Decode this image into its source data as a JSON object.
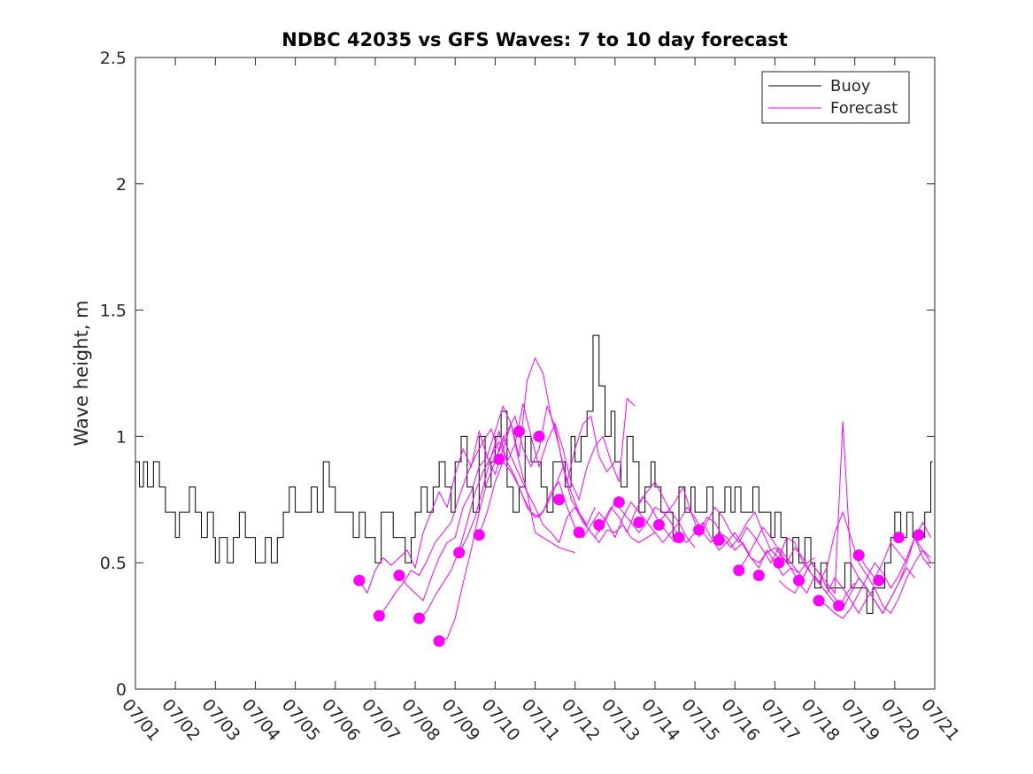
{
  "chart_data": {
    "type": "line",
    "title": "NDBC 42035 vs GFS Waves: 7 to 10 day forecast",
    "xlabel": "",
    "ylabel": "Wave height, m",
    "xlim": [
      0,
      20
    ],
    "ylim": [
      0,
      2.5
    ],
    "x_unit": "days since 07/01",
    "x_tick_labels": [
      "07/01",
      "07/02",
      "07/03",
      "07/04",
      "07/05",
      "07/06",
      "07/07",
      "07/08",
      "07/09",
      "07/10",
      "07/11",
      "07/12",
      "07/13",
      "07/14",
      "07/15",
      "07/16",
      "07/17",
      "07/18",
      "07/19",
      "07/20",
      "07/21"
    ],
    "y_ticks": [
      0,
      0.5,
      1,
      1.5,
      2,
      2.5
    ],
    "y_tick_labels": [
      "0",
      "0.5",
      "1",
      "1.5",
      "2",
      "2.5"
    ],
    "legend": {
      "placement": "top-right",
      "entries": [
        "Buoy",
        "Forecast"
      ]
    },
    "colors": {
      "buoy": "#000000",
      "forecast": "#ff00ff"
    },
    "series": [
      {
        "name": "Buoy",
        "x": [
          0,
          0.1,
          0.2,
          0.3,
          0.45,
          0.6,
          0.75,
          0.9,
          1.0,
          1.1,
          1.2,
          1.35,
          1.5,
          1.65,
          1.8,
          1.95,
          2.0,
          2.1,
          2.2,
          2.3,
          2.45,
          2.6,
          2.75,
          2.9,
          3.0,
          3.1,
          3.25,
          3.4,
          3.55,
          3.7,
          3.85,
          4.0,
          4.1,
          4.25,
          4.4,
          4.55,
          4.7,
          4.85,
          5.0,
          5.15,
          5.3,
          5.45,
          5.6,
          5.75,
          5.9,
          6.0,
          6.15,
          6.3,
          6.45,
          6.6,
          6.75,
          6.9,
          7.0,
          7.15,
          7.3,
          7.45,
          7.6,
          7.75,
          7.9,
          8.0,
          8.15,
          8.3,
          8.45,
          8.6,
          8.75,
          8.9,
          9.0,
          9.15,
          9.3,
          9.45,
          9.6,
          9.75,
          9.9,
          10.0,
          10.15,
          10.3,
          10.45,
          10.6,
          10.75,
          10.9,
          11.0,
          11.15,
          11.3,
          11.45,
          11.6,
          11.75,
          11.9,
          12.0,
          12.15,
          12.3,
          12.45,
          12.6,
          12.75,
          12.9,
          13.0,
          13.15,
          13.3,
          13.45,
          13.6,
          13.75,
          13.9,
          14.0,
          14.15,
          14.3,
          14.45,
          14.6,
          14.75,
          14.9,
          15.0,
          15.15,
          15.3,
          15.45,
          15.6,
          15.75,
          15.9,
          16.0,
          16.15,
          16.3,
          16.45,
          16.6,
          16.75,
          16.9,
          17.0,
          17.15,
          17.3,
          17.45,
          17.6,
          17.75,
          17.9,
          18.0,
          18.15,
          18.3,
          18.45,
          18.6,
          18.75,
          18.9,
          19.0,
          19.15,
          19.3,
          19.45,
          19.6,
          19.75,
          19.9
        ],
        "values": [
          0.9,
          0.8,
          0.9,
          0.8,
          0.9,
          0.8,
          0.7,
          0.7,
          0.6,
          0.7,
          0.7,
          0.8,
          0.7,
          0.6,
          0.7,
          0.6,
          0.5,
          0.6,
          0.6,
          0.5,
          0.6,
          0.7,
          0.6,
          0.6,
          0.5,
          0.5,
          0.6,
          0.5,
          0.6,
          0.7,
          0.8,
          0.7,
          0.7,
          0.7,
          0.8,
          0.7,
          0.9,
          0.8,
          0.7,
          0.7,
          0.7,
          0.6,
          0.7,
          0.6,
          0.6,
          0.5,
          0.7,
          0.7,
          0.6,
          0.6,
          0.5,
          0.6,
          0.7,
          0.8,
          0.7,
          0.8,
          0.9,
          0.8,
          0.7,
          0.9,
          1.0,
          0.8,
          0.7,
          1.0,
          0.8,
          0.9,
          1.0,
          1.1,
          0.8,
          0.7,
          0.8,
          1.0,
          0.9,
          0.9,
          0.8,
          0.7,
          0.9,
          0.9,
          0.8,
          1.0,
          0.9,
          1.0,
          1.1,
          1.4,
          1.2,
          1.0,
          1.1,
          0.9,
          0.8,
          1.0,
          0.9,
          0.7,
          0.8,
          0.9,
          0.8,
          0.7,
          0.7,
          0.6,
          0.8,
          0.7,
          0.8,
          0.7,
          0.7,
          0.8,
          0.6,
          0.7,
          0.8,
          0.7,
          0.8,
          0.7,
          0.7,
          0.8,
          0.7,
          0.7,
          0.6,
          0.7,
          0.6,
          0.5,
          0.6,
          0.5,
          0.6,
          0.5,
          0.4,
          0.5,
          0.4,
          0.4,
          0.4,
          0.5,
          0.4,
          0.4,
          0.4,
          0.3,
          0.4,
          0.4,
          0.5,
          0.6,
          0.7,
          0.6,
          0.7,
          0.6,
          0.6,
          0.7,
          0.9
        ]
      },
      {
        "name": "Forecast",
        "x": [
          5.6,
          5.8,
          6.0,
          6.2,
          6.4,
          6.6,
          6.8,
          7.0,
          7.2,
          7.4,
          7.6,
          7.8,
          8.0,
          8.2,
          8.4,
          8.6,
          8.8,
          9.0,
          9.2,
          9.4,
          9.6,
          9.8,
          10.0,
          10.2,
          10.4,
          10.6,
          10.8,
          11.0
        ],
        "values": [
          0.43,
          0.38,
          0.47,
          0.52,
          0.49,
          0.52,
          0.55,
          0.48,
          0.62,
          0.7,
          0.78,
          0.72,
          0.85,
          0.95,
          0.88,
          1.02,
          0.92,
          0.85,
          0.95,
          1.05,
          0.9,
          0.78,
          0.62,
          0.6,
          0.58,
          0.56,
          0.55,
          0.54
        ]
      },
      {
        "name": "Forecast",
        "x": [
          6.1,
          6.3,
          6.5,
          6.7,
          6.9,
          7.1,
          7.3,
          7.5,
          7.7,
          7.9,
          8.1,
          8.3,
          8.5,
          8.7,
          8.9,
          9.1,
          9.3,
          9.5,
          9.7,
          9.9,
          10.1,
          10.3,
          10.5,
          10.7,
          10.9,
          11.1,
          11.3,
          11.5
        ],
        "values": [
          0.29,
          0.33,
          0.38,
          0.42,
          0.47,
          0.45,
          0.51,
          0.58,
          0.62,
          0.66,
          0.76,
          0.85,
          0.92,
          0.98,
          1.03,
          0.94,
          1.02,
          1.08,
          0.95,
          0.88,
          0.95,
          1.12,
          1.04,
          0.88,
          0.75,
          0.7,
          0.65,
          0.72
        ]
      },
      {
        "name": "Forecast",
        "x": [
          6.6,
          6.8,
          7.0,
          7.2,
          7.4,
          7.6,
          7.8,
          8.0,
          8.2,
          8.4,
          8.6,
          8.8,
          9.0,
          9.2,
          9.4,
          9.6,
          9.8,
          10.0,
          10.2,
          10.4,
          10.6,
          10.8,
          11.0,
          11.2,
          11.4,
          11.6,
          11.8,
          12.0
        ],
        "values": [
          0.45,
          0.41,
          0.38,
          0.35,
          0.44,
          0.52,
          0.58,
          0.6,
          0.72,
          0.78,
          0.88,
          0.92,
          1.02,
          1.12,
          1.05,
          0.92,
          1.22,
          1.31,
          1.25,
          1.08,
          0.96,
          0.82,
          0.95,
          1.05,
          1.08,
          0.92,
          0.86,
          0.9
        ]
      },
      {
        "name": "Forecast",
        "x": [
          7.1,
          7.3,
          7.5,
          7.7,
          7.9,
          8.1,
          8.3,
          8.5,
          8.7,
          8.9,
          9.1,
          9.3,
          9.5,
          9.7,
          9.9,
          10.1,
          10.3,
          10.5,
          10.7,
          10.9,
          11.1,
          11.3,
          11.5,
          11.7,
          11.9,
          12.1,
          12.3,
          12.5
        ],
        "values": [
          0.28,
          0.31,
          0.37,
          0.42,
          0.47,
          0.55,
          0.66,
          0.78,
          0.86,
          0.92,
          1.02,
          0.9,
          0.97,
          1.13,
          1.0,
          0.88,
          0.98,
          1.05,
          0.95,
          0.82,
          0.75,
          0.88,
          0.96,
          1.0,
          0.9,
          0.82,
          1.15,
          1.12
        ]
      },
      {
        "name": "Forecast",
        "x": [
          7.6,
          7.8,
          8.0,
          8.2,
          8.4,
          8.6,
          8.8,
          9.0,
          9.2,
          9.4,
          9.6,
          9.8,
          10.0,
          10.2,
          10.4,
          10.6,
          10.8,
          11.0,
          11.2,
          11.4,
          11.6,
          11.8,
          12.0,
          12.2,
          12.4,
          12.6,
          12.8,
          13.0
        ],
        "values": [
          0.19,
          0.2,
          0.28,
          0.42,
          0.55,
          0.7,
          0.82,
          0.9,
          1.0,
          0.92,
          0.85,
          0.78,
          0.72,
          0.65,
          0.62,
          0.58,
          0.68,
          0.72,
          0.66,
          0.62,
          0.58,
          0.63,
          0.62,
          0.65,
          0.6,
          0.58,
          0.6,
          0.62
        ]
      },
      {
        "name": "Forecast",
        "x": [
          8.1,
          8.3,
          8.5,
          8.7,
          8.9,
          9.1,
          9.3,
          9.5,
          9.7,
          9.9,
          10.1,
          10.3,
          10.5,
          10.7,
          10.9,
          11.1,
          11.3,
          11.5,
          11.7,
          11.9,
          12.1,
          12.3,
          12.5,
          12.7,
          12.9,
          13.1,
          13.3,
          13.5
        ],
        "values": [
          0.54,
          0.6,
          0.68,
          0.8,
          0.92,
          0.98,
          0.9,
          0.84,
          0.76,
          0.7,
          0.68,
          0.73,
          0.8,
          0.88,
          0.78,
          0.7,
          0.64,
          0.6,
          0.66,
          0.72,
          0.68,
          0.62,
          0.7,
          0.76,
          0.72,
          0.66,
          0.62,
          0.58
        ]
      },
      {
        "name": "Forecast",
        "x": [
          8.6,
          8.8,
          9.0,
          9.2,
          9.4,
          9.6,
          9.8,
          10.0,
          10.2,
          10.4,
          10.6,
          10.8,
          11.0,
          11.2,
          11.4,
          11.6,
          11.8,
          12.0,
          12.2,
          12.4,
          12.6,
          12.8,
          13.0,
          13.2,
          13.4,
          13.6,
          13.8,
          14.0
        ],
        "values": [
          0.61,
          0.7,
          0.82,
          0.9,
          0.86,
          0.8,
          0.72,
          0.68,
          0.7,
          0.78,
          0.82,
          0.72,
          0.64,
          0.6,
          0.65,
          0.7,
          0.66,
          0.6,
          0.68,
          0.74,
          0.7,
          0.66,
          0.62,
          0.58,
          0.62,
          0.66,
          0.6,
          0.56
        ]
      },
      {
        "name": "Forecast",
        "x": [
          11.6,
          11.8,
          12.0,
          12.2,
          12.4,
          12.6,
          12.8,
          13.0,
          13.2,
          13.4,
          13.6,
          13.8,
          14.0,
          14.2,
          14.4,
          14.6,
          14.8,
          15.0,
          15.2,
          15.4,
          15.6,
          15.8,
          16.0,
          16.2,
          16.4,
          16.6,
          16.8,
          17.0
        ],
        "values": [
          0.62,
          0.68,
          0.74,
          0.7,
          0.66,
          0.62,
          0.66,
          0.72,
          0.7,
          0.66,
          0.6,
          0.58,
          0.62,
          0.66,
          0.6,
          0.55,
          0.58,
          0.62,
          0.57,
          0.52,
          0.5,
          0.54,
          0.56,
          0.52,
          0.48,
          0.46,
          0.5,
          0.52
        ]
      },
      {
        "name": "Forecast",
        "x": [
          12.6,
          12.8,
          13.0,
          13.2,
          13.4,
          13.6,
          13.8,
          14.0,
          14.2,
          14.4,
          14.6,
          14.8,
          15.0,
          15.2,
          15.4,
          15.6,
          15.8,
          16.0,
          16.2,
          16.4,
          16.6,
          16.8,
          17.0,
          17.2,
          17.4,
          17.6,
          17.8,
          18.0
        ],
        "values": [
          0.74,
          0.78,
          0.82,
          0.76,
          0.7,
          0.66,
          0.72,
          0.68,
          0.62,
          0.58,
          0.62,
          0.6,
          0.55,
          0.58,
          0.52,
          0.48,
          0.55,
          0.5,
          0.45,
          0.48,
          0.42,
          0.38,
          0.45,
          0.4,
          0.36,
          0.32,
          0.38,
          0.42
        ]
      },
      {
        "name": "Forecast",
        "x": [
          13.1,
          13.3,
          13.5,
          13.7,
          13.9,
          14.1,
          14.3,
          14.5,
          14.7,
          14.9,
          15.1,
          15.3,
          15.5,
          15.7,
          15.9,
          16.1,
          16.3,
          16.5,
          16.7,
          16.9,
          17.1,
          17.3,
          17.5,
          17.7,
          17.9,
          18.1,
          18.3,
          18.5
        ],
        "values": [
          0.66,
          0.7,
          0.74,
          0.8,
          0.7,
          0.62,
          0.68,
          0.66,
          0.6,
          0.56,
          0.6,
          0.66,
          0.7,
          0.62,
          0.55,
          0.52,
          0.6,
          0.58,
          0.5,
          0.46,
          0.42,
          0.38,
          0.44,
          0.4,
          0.35,
          0.3,
          0.36,
          0.4
        ]
      },
      {
        "name": "Forecast",
        "x": [
          14.1,
          14.3,
          14.5,
          14.7,
          14.9,
          15.1,
          15.3,
          15.5,
          15.7,
          15.9,
          16.1,
          16.3,
          16.5,
          16.7,
          16.9,
          17.1,
          17.3,
          17.5,
          17.7,
          17.9,
          18.1,
          18.3,
          18.5,
          18.7,
          18.9,
          19.1,
          19.3,
          19.5
        ],
        "values": [
          0.6,
          0.66,
          0.72,
          0.68,
          0.62,
          0.58,
          0.64,
          0.6,
          0.55,
          0.5,
          0.56,
          0.52,
          0.48,
          0.44,
          0.5,
          0.46,
          0.42,
          0.38,
          1.06,
          0.5,
          0.44,
          0.4,
          0.35,
          0.3,
          0.36,
          0.42,
          0.48,
          0.44
        ]
      },
      {
        "name": "Forecast",
        "x": [
          15.1,
          15.3,
          15.5,
          15.7,
          15.9,
          16.1,
          16.3,
          16.5,
          16.7,
          16.9,
          17.1,
          17.3,
          17.5,
          17.7,
          17.9,
          18.1,
          18.3,
          18.5,
          18.7,
          18.9,
          19.1,
          19.3,
          19.5,
          19.7,
          19.9
        ],
        "values": [
          0.47,
          0.52,
          0.58,
          0.64,
          0.6,
          0.55,
          0.5,
          0.56,
          0.52,
          0.46,
          0.42,
          0.48,
          0.62,
          0.7,
          0.6,
          0.5,
          0.45,
          0.4,
          0.33,
          0.3,
          0.36,
          0.44,
          0.5,
          0.55,
          0.52
        ]
      },
      {
        "name": "Forecast",
        "x": [
          16.1,
          16.3,
          16.5,
          16.7,
          16.9,
          17.1,
          17.3,
          17.5,
          17.7,
          17.9,
          18.1,
          18.3,
          18.5,
          18.7,
          18.9,
          19.1,
          19.3,
          19.5,
          19.7,
          19.9
        ],
        "values": [
          0.43,
          0.4,
          0.38,
          0.44,
          0.5,
          0.46,
          0.4,
          0.36,
          0.32,
          0.38,
          0.44,
          0.4,
          0.35,
          0.3,
          0.36,
          0.42,
          0.5,
          0.6,
          0.52,
          0.48
        ]
      },
      {
        "name": "Forecast",
        "x": [
          17.1,
          17.3,
          17.5,
          17.7,
          17.9,
          18.1,
          18.3,
          18.5,
          18.7,
          18.9,
          19.1,
          19.3,
          19.5,
          19.7,
          19.9
        ],
        "values": [
          0.35,
          0.33,
          0.3,
          0.28,
          0.32,
          0.38,
          0.44,
          0.5,
          0.46,
          0.4,
          0.45,
          0.52,
          0.6,
          0.55,
          0.5
        ]
      },
      {
        "name": "Forecast",
        "x": [
          18.1,
          18.3,
          18.5,
          18.7,
          18.9,
          19.1,
          19.3,
          19.5,
          19.7,
          19.9
        ],
        "values": [
          0.53,
          0.48,
          0.44,
          0.5,
          0.58,
          0.54,
          0.5,
          0.6,
          0.66,
          0.6
        ]
      }
    ],
    "forecast_points": {
      "x": [
        5.6,
        6.1,
        6.6,
        7.1,
        7.6,
        8.1,
        8.6,
        9.1,
        9.6,
        10.1,
        10.6,
        11.1,
        11.6,
        12.1,
        12.6,
        13.1,
        13.6,
        14.1,
        14.6,
        15.1,
        15.6,
        16.1,
        16.6,
        17.1,
        17.6,
        18.1,
        18.6,
        19.1,
        19.6
      ],
      "values": [
        0.43,
        0.29,
        0.45,
        0.28,
        0.19,
        0.54,
        0.61,
        0.91,
        1.02,
        1.0,
        0.75,
        0.62,
        0.65,
        0.74,
        0.66,
        0.65,
        0.6,
        0.63,
        0.59,
        0.47,
        0.45,
        0.5,
        0.43,
        0.35,
        0.33,
        0.53,
        0.43,
        0.6,
        0.61
      ]
    }
  }
}
